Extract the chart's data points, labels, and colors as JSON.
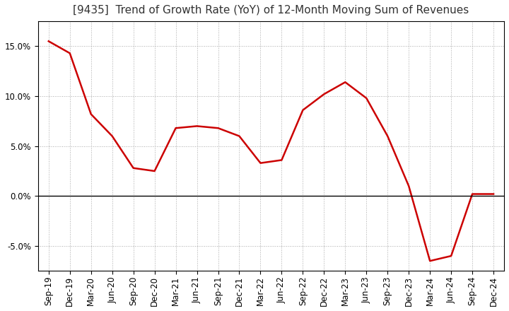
{
  "title": "[9435]  Trend of Growth Rate (YoY) of 12-Month Moving Sum of Revenues",
  "x_labels": [
    "Sep-19",
    "Dec-19",
    "Mar-20",
    "Jun-20",
    "Sep-20",
    "Dec-20",
    "Mar-21",
    "Jun-21",
    "Sep-21",
    "Dec-21",
    "Mar-22",
    "Jun-22",
    "Sep-22",
    "Dec-22",
    "Mar-23",
    "Jun-23",
    "Sep-23",
    "Dec-23",
    "Mar-24",
    "Jun-24",
    "Sep-24",
    "Dec-24"
  ],
  "y_values": [
    0.155,
    0.143,
    0.082,
    0.06,
    0.028,
    0.025,
    0.068,
    0.07,
    0.068,
    0.06,
    0.033,
    0.036,
    0.086,
    0.102,
    0.114,
    0.098,
    0.06,
    0.01,
    -0.065,
    -0.06,
    0.002,
    0.002
  ],
  "line_color": "#CC0000",
  "line_width": 1.8,
  "background_color": "#ffffff",
  "plot_bg_color": "#ffffff",
  "grid_color": "#aaaaaa",
  "yticks": [
    -0.05,
    0.0,
    0.05,
    0.1,
    0.15
  ],
  "ylim": [
    -0.075,
    0.175
  ],
  "title_fontsize": 11,
  "tick_fontsize": 8.5,
  "zero_line_color": "#000000",
  "title_color": "#333333"
}
